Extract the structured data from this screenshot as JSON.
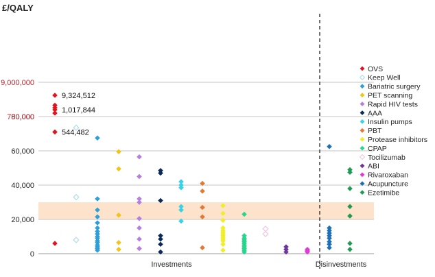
{
  "chart_data": {
    "type": "scatter",
    "ylabel": "£/QALY",
    "x_group_labels": [
      "Investments",
      "Disinvestments"
    ],
    "y_ticks": [
      {
        "label": "0",
        "value": 0,
        "broken": false
      },
      {
        "label": "20,000",
        "value": 20000,
        "broken": false
      },
      {
        "label": "40,000",
        "value": 40000,
        "broken": false
      },
      {
        "label": "60,000",
        "value": 60000,
        "broken": false
      },
      {
        "label": "80,000",
        "value": 80000,
        "broken": false
      },
      {
        "label": "750,000",
        "value": 750000,
        "broken": true
      },
      {
        "label": "9,000,000",
        "value": 9000000,
        "broken": true
      }
    ],
    "threshold_band": {
      "from": 20000,
      "to": 30000,
      "color": "#fde3cc"
    },
    "annotations": [
      {
        "text": "9,324,512",
        "series": "OVS",
        "level": 9.24
      },
      {
        "text": "1,017,844",
        "series": "OVS",
        "level": 8.4
      },
      {
        "text": "544,482",
        "series": "OVS",
        "level": 7.1
      }
    ],
    "series": [
      {
        "name": "OVS",
        "color": "#e0141e",
        "hollow": false,
        "x": 1,
        "values": [
          6000
        ],
        "broken_levels": [
          9.24,
          8.66,
          8.52,
          8.4,
          8.2,
          7.1
        ]
      },
      {
        "name": "Keep Well",
        "color": "#b7dee8",
        "hollow": true,
        "x": 2,
        "values": [
          73500,
          33000,
          8000
        ]
      },
      {
        "name": "Bariatric surgery",
        "color": "#2e9fd8",
        "hollow": false,
        "x": 3,
        "values": [
          67500,
          32000,
          25500,
          21500,
          18000,
          15000,
          13000,
          11500,
          10000,
          9000,
          7500,
          6500,
          5000,
          4000,
          3000,
          2000
        ]
      },
      {
        "name": "PET scanning",
        "color": "#f0c419",
        "hollow": false,
        "x": 4,
        "values": [
          59500,
          49500,
          22500,
          6500,
          2500
        ]
      },
      {
        "name": "Rapid HIV tests",
        "color": "#b57fe0",
        "hollow": false,
        "x": 5,
        "values": [
          56500,
          45000,
          32000,
          30000,
          20500,
          15000,
          8500,
          3000
        ]
      },
      {
        "name": "AAA",
        "color": "#0b2a5a",
        "hollow": false,
        "x": 6,
        "values": [
          48500,
          47000,
          31000,
          10500,
          8500,
          5500,
          1000
        ]
      },
      {
        "name": "Insulin pumps",
        "color": "#36d3e8",
        "hollow": false,
        "x": 7,
        "values": [
          42000,
          40000,
          38500,
          27500,
          25500,
          19000
        ]
      },
      {
        "name": "PBT",
        "color": "#e07a38",
        "hollow": false,
        "x": 8,
        "values": [
          41000,
          36500,
          27000,
          21500,
          3500
        ]
      },
      {
        "name": "Protease inhibitors",
        "color": "#f0ee2a",
        "hollow": false,
        "x": 9,
        "values": [
          28000,
          23500,
          19500,
          15000,
          13500,
          12500,
          11500,
          10500,
          9500,
          8500,
          7500,
          5500,
          2000
        ]
      },
      {
        "name": "CPAP",
        "color": "#26d68c",
        "hollow": false,
        "x": 10,
        "values": [
          23000,
          10500,
          9000,
          8000,
          7000,
          6000,
          5000,
          4000,
          3000,
          2000,
          1000
        ]
      },
      {
        "name": "Tocilizumab",
        "color": "#f2c8e4",
        "hollow": true,
        "x": 11,
        "values": [
          14500,
          11500
        ]
      },
      {
        "name": "ABI",
        "color": "#6c3599",
        "hollow": false,
        "x": 12,
        "values": [
          4000,
          2500,
          1000
        ]
      },
      {
        "name": "Rivaroxaban",
        "color": "#e23ad6",
        "hollow": false,
        "x": 13,
        "values": [
          2500,
          2000,
          1500,
          1000
        ]
      },
      {
        "name": "Acupuncture",
        "color": "#1d6fb8",
        "hollow": false,
        "x": 14,
        "values": [
          62500,
          15000,
          13500,
          12000,
          10500,
          9000,
          7000,
          5500,
          3500
        ]
      },
      {
        "name": "Ezetimibe",
        "color": "#1f9a53",
        "hollow": false,
        "x": 15,
        "values": [
          49000,
          47500,
          38000,
          27500,
          22000,
          6000,
          2500
        ]
      }
    ]
  }
}
